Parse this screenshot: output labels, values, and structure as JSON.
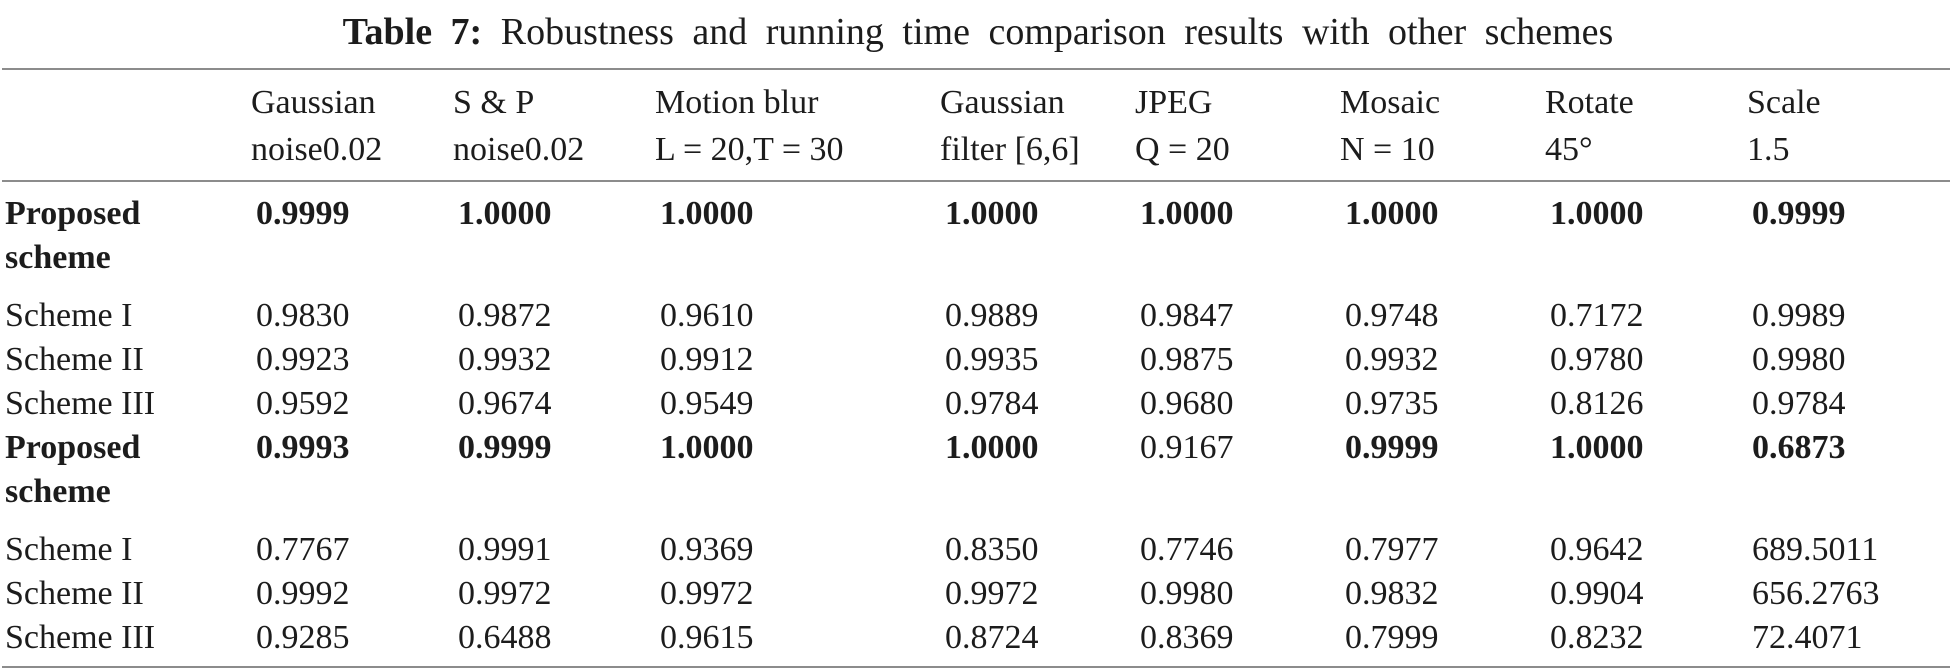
{
  "caption": {
    "label": "Table 7:",
    "text": "Robustness and running time comparison results with other schemes"
  },
  "colors": {
    "background": "#ffffff",
    "text": "#1c1c1c",
    "rule": "#8c8c8c"
  },
  "table": {
    "header": [
      {
        "line1": "Gaussian",
        "line2": "noise0.02"
      },
      {
        "line1": "S & P",
        "line2": "noise0.02"
      },
      {
        "line1": "Motion blur",
        "line2": "L = 20,T = 30"
      },
      {
        "line1": "Gaussian",
        "line2": "filter [6,6]"
      },
      {
        "line1": "JPEG",
        "line2": "Q = 20"
      },
      {
        "line1": "Mosaic",
        "line2": "N = 10"
      },
      {
        "line1": "Rotate",
        "line2": "45°"
      },
      {
        "line1": "Scale",
        "line2": "1.5"
      }
    ],
    "rows": [
      {
        "label": "Proposed scheme",
        "label_bold": true,
        "values": [
          "0.9999",
          "1.0000",
          "1.0000",
          "1.0000",
          "1.0000",
          "1.0000",
          "1.0000",
          "0.9999"
        ],
        "values_bold": [
          true,
          true,
          true,
          true,
          true,
          true,
          true,
          true
        ]
      },
      {
        "label": "Scheme I",
        "label_bold": false,
        "values": [
          "0.9830",
          "0.9872",
          "0.9610",
          "0.9889",
          "0.9847",
          "0.9748",
          "0.7172",
          "0.9989"
        ],
        "values_bold": [
          false,
          false,
          false,
          false,
          false,
          false,
          false,
          false
        ]
      },
      {
        "label": "Scheme II",
        "label_bold": false,
        "values": [
          "0.9923",
          "0.9932",
          "0.9912",
          "0.9935",
          "0.9875",
          "0.9932",
          "0.9780",
          "0.9980"
        ],
        "values_bold": [
          false,
          false,
          false,
          false,
          false,
          false,
          false,
          false
        ]
      },
      {
        "label": "Scheme III",
        "label_bold": false,
        "values": [
          "0.9592",
          "0.9674",
          "0.9549",
          "0.9784",
          "0.9680",
          "0.9735",
          "0.8126",
          "0.9784"
        ],
        "values_bold": [
          false,
          false,
          false,
          false,
          false,
          false,
          false,
          false
        ]
      },
      {
        "label": "Proposed scheme",
        "label_bold": true,
        "values": [
          "0.9993",
          "0.9999",
          "1.0000",
          "1.0000",
          "0.9167",
          "0.9999",
          "1.0000",
          "0.6873"
        ],
        "values_bold": [
          true,
          true,
          true,
          true,
          false,
          true,
          true,
          true
        ]
      },
      {
        "label": "Scheme I",
        "label_bold": false,
        "values": [
          "0.7767",
          "0.9991",
          "0.9369",
          "0.8350",
          "0.7746",
          "0.7977",
          "0.9642",
          "689.5011"
        ],
        "values_bold": [
          false,
          false,
          false,
          false,
          false,
          false,
          false,
          false
        ]
      },
      {
        "label": "Scheme II",
        "label_bold": false,
        "values": [
          "0.9992",
          "0.9972",
          "0.9972",
          "0.9972",
          "0.9980",
          "0.9832",
          "0.9904",
          "656.2763"
        ],
        "values_bold": [
          false,
          false,
          false,
          false,
          false,
          false,
          false,
          false
        ]
      },
      {
        "label": "Scheme III",
        "label_bold": false,
        "values": [
          "0.9285",
          "0.6488",
          "0.9615",
          "0.8724",
          "0.8369",
          "0.7999",
          "0.8232",
          "72.4071"
        ],
        "values_bold": [
          false,
          false,
          false,
          false,
          false,
          false,
          false,
          false
        ]
      }
    ]
  }
}
